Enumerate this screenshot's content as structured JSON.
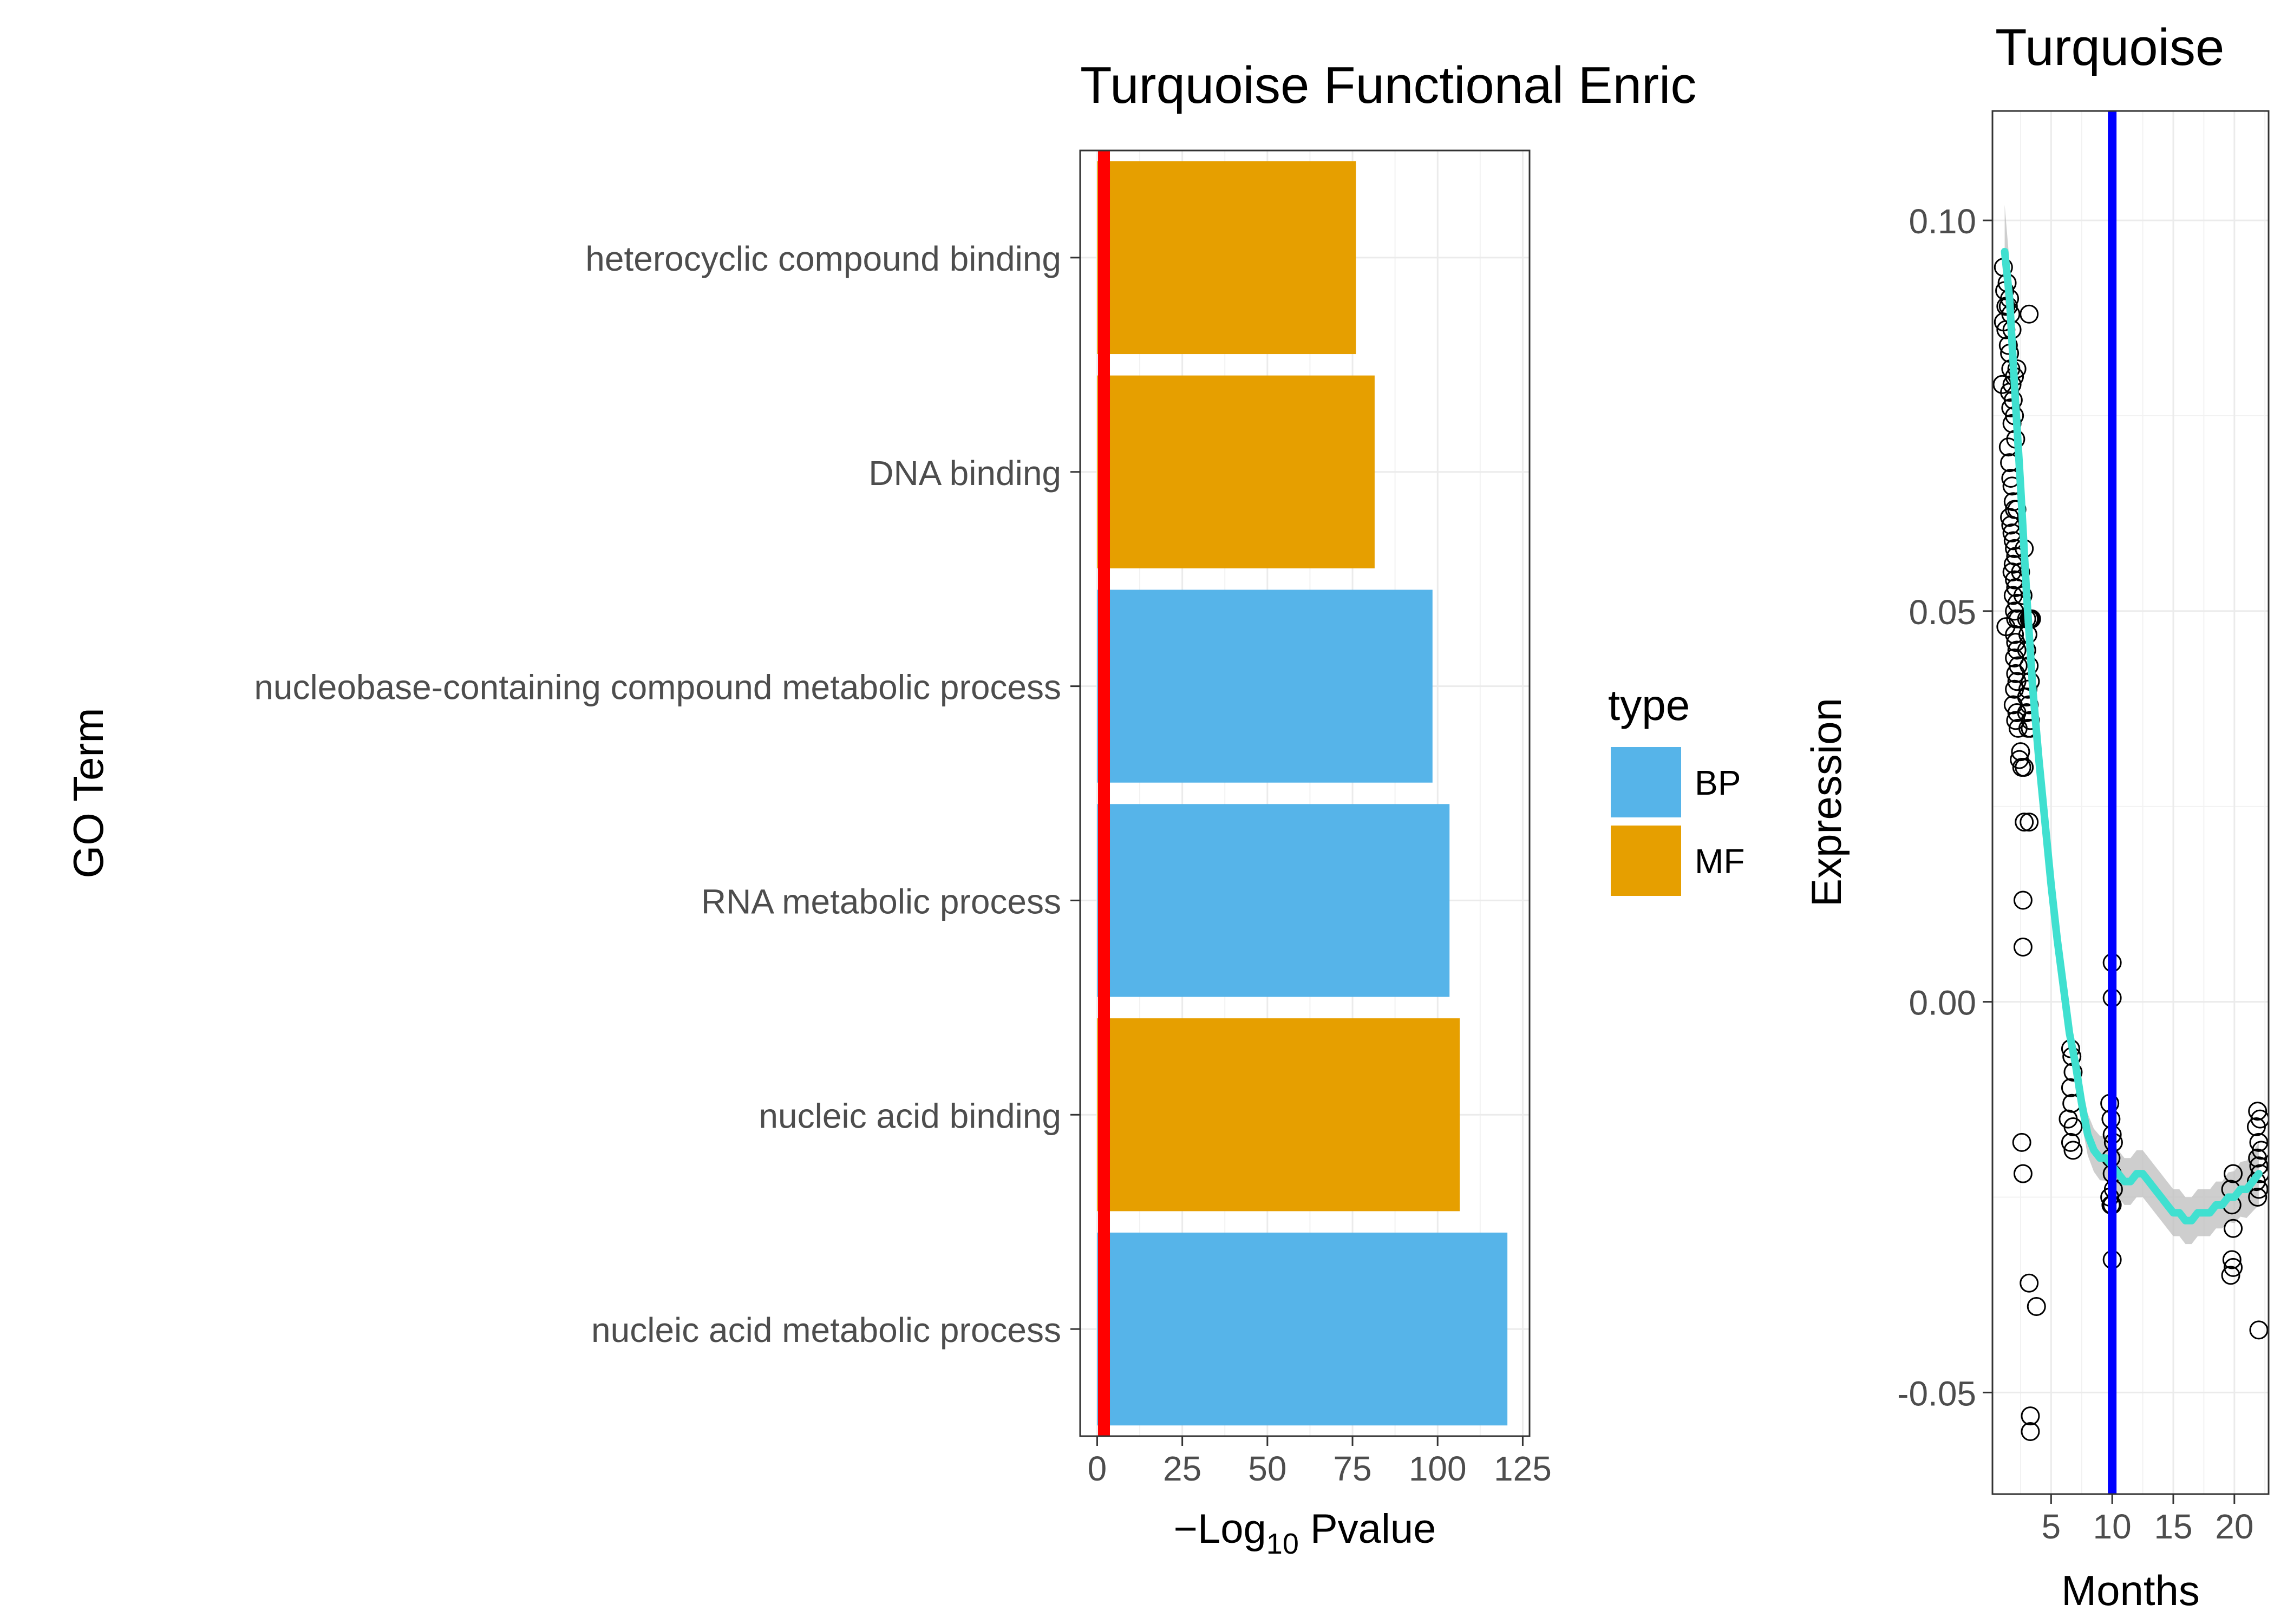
{
  "chart_data": [
    {
      "type": "bar",
      "orientation": "horizontal",
      "title": "Turquoise Functional Enric",
      "xlabel": {
        "prefix": "−Log",
        "subscript": "10",
        "suffix": " Pvalue"
      },
      "ylabel": "GO Term",
      "xlim": [
        -5,
        127
      ],
      "xticks": [
        "0",
        "25",
        "50",
        "75",
        "100",
        "125"
      ],
      "xtick_values": [
        0,
        25,
        50,
        75,
        100,
        125
      ],
      "grid": true,
      "categories": [
        "heterocyclic compound binding",
        "DNA binding",
        "nucleobase-containing compound metabolic process",
        "RNA metabolic process",
        "nucleic acid binding",
        "nucleic acid metabolic process"
      ],
      "values": [
        76,
        81.5,
        98.5,
        103.5,
        106.5,
        120.5
      ],
      "types": [
        "MF",
        "MF",
        "BP",
        "BP",
        "MF",
        "BP"
      ],
      "reference_line": {
        "x": 2,
        "color": "#FF0000"
      },
      "legend": {
        "title": "type",
        "placement": "right",
        "entries": [
          {
            "label": "BP",
            "color": "#56B4E9"
          },
          {
            "label": "MF",
            "color": "#E69F00"
          }
        ]
      }
    },
    {
      "type": "scatter",
      "title": "Turquoise",
      "xlabel": "Months",
      "ylabel": "Expression",
      "xlim": [
        0.2,
        22.8
      ],
      "ylim": [
        -0.063,
        0.114
      ],
      "xticks": [
        "5",
        "10",
        "15",
        "20"
      ],
      "xtick_values": [
        5,
        10,
        15,
        20
      ],
      "yticks": [
        "0.10",
        "0.05",
        "0.00",
        "-0.05"
      ],
      "ytick_values": [
        0.1,
        0.05,
        0.0,
        -0.05
      ],
      "grid": true,
      "vertical_line": {
        "x": 10,
        "color": "#0000FF"
      },
      "smooth_color": "#40E0D0",
      "ribbon_color": "#BEBEBE",
      "points": [
        [
          1.1,
          0.094
        ],
        [
          1.2,
          0.091
        ],
        [
          1.3,
          0.089
        ],
        [
          1.1,
          0.087
        ],
        [
          1.0,
          0.079
        ],
        [
          1.4,
          0.092
        ],
        [
          1.5,
          0.089
        ],
        [
          1.6,
          0.09
        ],
        [
          1.7,
          0.088
        ],
        [
          1.8,
          0.086
        ],
        [
          1.3,
          0.086
        ],
        [
          1.5,
          0.084
        ],
        [
          1.6,
          0.083
        ],
        [
          1.7,
          0.081
        ],
        [
          1.8,
          0.079
        ],
        [
          1.9,
          0.077
        ],
        [
          2.0,
          0.075
        ],
        [
          2.1,
          0.072
        ],
        [
          2.2,
          0.081
        ],
        [
          2.0,
          0.08
        ],
        [
          1.6,
          0.078
        ],
        [
          1.7,
          0.076
        ],
        [
          1.8,
          0.074
        ],
        [
          1.5,
          0.071
        ],
        [
          1.6,
          0.069
        ],
        [
          1.7,
          0.067
        ],
        [
          1.8,
          0.066
        ],
        [
          1.9,
          0.064
        ],
        [
          2.0,
          0.063
        ],
        [
          2.2,
          0.063
        ],
        [
          1.6,
          0.062
        ],
        [
          1.7,
          0.061
        ],
        [
          1.8,
          0.06
        ],
        [
          1.9,
          0.059
        ],
        [
          2.0,
          0.058
        ],
        [
          2.1,
          0.057
        ],
        [
          1.9,
          0.056
        ],
        [
          1.8,
          0.055
        ],
        [
          2.0,
          0.054
        ],
        [
          2.1,
          0.053
        ],
        [
          1.9,
          0.052
        ],
        [
          2.2,
          0.051
        ],
        [
          2.0,
          0.05
        ],
        [
          2.1,
          0.049
        ],
        [
          2.3,
          0.049
        ],
        [
          1.3,
          0.048
        ],
        [
          2.0,
          0.047
        ],
        [
          2.1,
          0.046
        ],
        [
          2.2,
          0.045
        ],
        [
          2.0,
          0.044
        ],
        [
          2.3,
          0.043
        ],
        [
          2.1,
          0.042
        ],
        [
          2.2,
          0.041
        ],
        [
          2.0,
          0.04
        ],
        [
          1.9,
          0.038
        ],
        [
          2.2,
          0.037
        ],
        [
          2.1,
          0.036
        ],
        [
          2.3,
          0.035
        ],
        [
          2.5,
          0.032
        ],
        [
          2.4,
          0.031
        ],
        [
          2.6,
          0.03
        ],
        [
          2.8,
          0.058
        ],
        [
          3.0,
          0.049
        ],
        [
          2.5,
          0.055
        ],
        [
          2.7,
          0.052
        ],
        [
          3.1,
          0.047
        ],
        [
          3.2,
          0.049
        ],
        [
          3.3,
          0.049
        ],
        [
          3.4,
          0.049
        ],
        [
          3.0,
          0.045
        ],
        [
          3.2,
          0.043
        ],
        [
          3.3,
          0.041
        ],
        [
          3.1,
          0.04
        ],
        [
          3.2,
          0.038
        ],
        [
          3.0,
          0.037
        ],
        [
          3.3,
          0.036
        ],
        [
          3.1,
          0.035
        ],
        [
          3.3,
          0.035
        ],
        [
          2.8,
          0.03
        ],
        [
          3.0,
          0.039
        ],
        [
          2.8,
          0.023
        ],
        [
          3.2,
          0.023
        ],
        [
          2.7,
          0.013
        ],
        [
          2.7,
          0.007
        ],
        [
          3.2,
          0.088
        ],
        [
          2.6,
          -0.018
        ],
        [
          2.7,
          -0.022
        ],
        [
          3.2,
          -0.036
        ],
        [
          3.8,
          -0.039
        ],
        [
          3.3,
          -0.053
        ],
        [
          3.3,
          -0.055
        ],
        [
          6.6,
          -0.006
        ],
        [
          6.7,
          -0.007
        ],
        [
          6.8,
          -0.009
        ],
        [
          6.6,
          -0.011
        ],
        [
          6.7,
          -0.013
        ],
        [
          6.4,
          -0.015
        ],
        [
          6.8,
          -0.016
        ],
        [
          6.6,
          -0.018
        ],
        [
          6.8,
          -0.019
        ],
        [
          10.0,
          0.005
        ],
        [
          10.0,
          0.0005
        ],
        [
          9.8,
          -0.013
        ],
        [
          9.9,
          -0.015
        ],
        [
          10.0,
          -0.017
        ],
        [
          10.1,
          -0.018
        ],
        [
          9.9,
          -0.02
        ],
        [
          10.0,
          -0.022
        ],
        [
          10.1,
          -0.024
        ],
        [
          9.8,
          -0.025
        ],
        [
          10.0,
          -0.026
        ],
        [
          9.9,
          -0.026
        ],
        [
          10.0,
          -0.033
        ],
        [
          19.9,
          -0.022
        ],
        [
          19.7,
          -0.024
        ],
        [
          19.8,
          -0.026
        ],
        [
          19.9,
          -0.029
        ],
        [
          19.8,
          -0.033
        ],
        [
          19.9,
          -0.034
        ],
        [
          19.7,
          -0.035
        ],
        [
          21.9,
          -0.014
        ],
        [
          22.1,
          -0.015
        ],
        [
          21.8,
          -0.016
        ],
        [
          22.0,
          -0.018
        ],
        [
          22.2,
          -0.019
        ],
        [
          21.9,
          -0.02
        ],
        [
          22.0,
          -0.021
        ],
        [
          22.1,
          -0.022
        ],
        [
          21.8,
          -0.023
        ],
        [
          22.0,
          -0.024
        ],
        [
          21.9,
          -0.025
        ],
        [
          22.0,
          -0.042
        ]
      ],
      "smooth": [
        [
          1.2,
          0.096
        ],
        [
          1.6,
          0.09
        ],
        [
          2.0,
          0.079
        ],
        [
          2.5,
          0.066
        ],
        [
          3.0,
          0.052
        ],
        [
          3.5,
          0.04
        ],
        [
          4.0,
          0.031
        ],
        [
          4.5,
          0.023
        ],
        [
          5.0,
          0.015
        ],
        [
          5.5,
          0.008
        ],
        [
          6.0,
          0.002
        ],
        [
          6.5,
          -0.004
        ],
        [
          7.0,
          -0.008
        ],
        [
          7.5,
          -0.013
        ],
        [
          8.0,
          -0.017
        ],
        [
          8.5,
          -0.019
        ],
        [
          9.0,
          -0.02
        ],
        [
          9.5,
          -0.02
        ],
        [
          10.0,
          -0.021
        ],
        [
          10.5,
          -0.022
        ],
        [
          11.0,
          -0.023
        ],
        [
          11.5,
          -0.023
        ],
        [
          12.0,
          -0.022
        ],
        [
          12.5,
          -0.022
        ],
        [
          13.0,
          -0.023
        ],
        [
          13.5,
          -0.024
        ],
        [
          14.0,
          -0.025
        ],
        [
          14.5,
          -0.026
        ],
        [
          15.0,
          -0.027
        ],
        [
          15.5,
          -0.027
        ],
        [
          16.0,
          -0.028
        ],
        [
          16.5,
          -0.028
        ],
        [
          17.0,
          -0.027
        ],
        [
          17.5,
          -0.027
        ],
        [
          18.0,
          -0.027
        ],
        [
          18.5,
          -0.026
        ],
        [
          19.0,
          -0.026
        ],
        [
          19.5,
          -0.025
        ],
        [
          20.0,
          -0.025
        ],
        [
          20.5,
          -0.024
        ],
        [
          21.0,
          -0.024
        ],
        [
          21.5,
          -0.023
        ],
        [
          22.0,
          -0.022
        ]
      ],
      "ribbon_halfwidth": [
        [
          1.2,
          0.006
        ],
        [
          2.0,
          0.003
        ],
        [
          4.0,
          0.002
        ],
        [
          6.0,
          0.002
        ],
        [
          7.0,
          0.0025
        ],
        [
          10.0,
          0.003
        ],
        [
          13.0,
          0.003
        ],
        [
          16.0,
          0.003
        ],
        [
          19.0,
          0.003
        ],
        [
          22.0,
          0.004
        ]
      ]
    }
  ]
}
